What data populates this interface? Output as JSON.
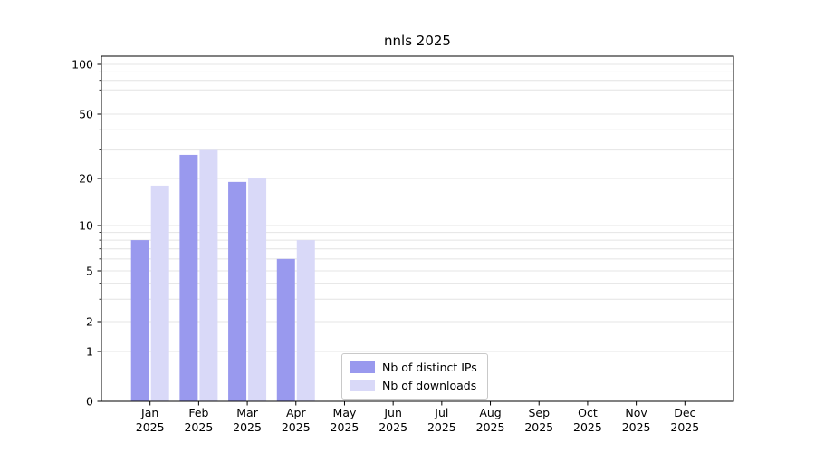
{
  "chart_data": {
    "type": "bar",
    "title": "nnls 2025",
    "categories": [
      "Jan",
      "Feb",
      "Mar",
      "Apr",
      "May",
      "Jun",
      "Jul",
      "Aug",
      "Sep",
      "Oct",
      "Nov",
      "Dec"
    ],
    "year_label": "2025",
    "series": [
      {
        "name": "Nb of distinct IPs",
        "color": "#9999ee",
        "values": [
          8,
          28,
          19,
          6,
          0,
          0,
          0,
          0,
          0,
          0,
          0,
          0
        ]
      },
      {
        "name": "Nb of downloads",
        "color": "#d9d9f8",
        "values": [
          18,
          30,
          20,
          8,
          0,
          0,
          0,
          0,
          0,
          0,
          0,
          0
        ]
      }
    ],
    "yscale": "symlog",
    "yticks": [
      0,
      1,
      2,
      5,
      10,
      20,
      50,
      100
    ],
    "ylim": [
      0,
      110
    ],
    "grid": true,
    "gridline_values": [
      1,
      2,
      3,
      4,
      5,
      6,
      7,
      8,
      9,
      10,
      20,
      30,
      40,
      50,
      60,
      70,
      80,
      90,
      100
    ],
    "legend_position": "lower center",
    "axis_color": "#000000",
    "grid_color": "#e4e4e4"
  }
}
